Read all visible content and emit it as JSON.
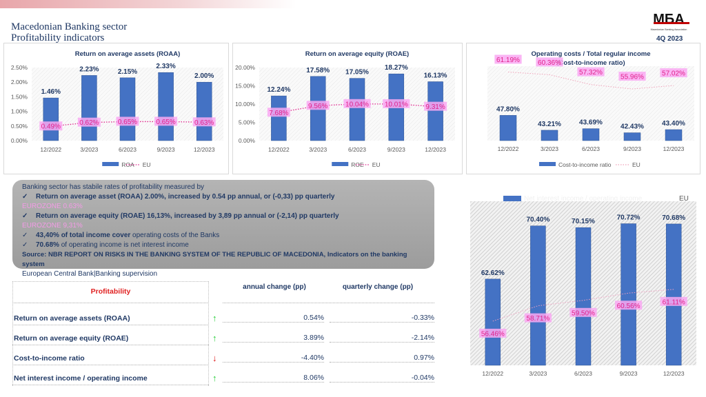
{
  "header": {
    "title_line1": "Macedonian Banking sector",
    "title_line2": "Profitability indicators",
    "logo_text": "MБA",
    "logo_subtitle": "Macedonian Banking Association",
    "period": "4Q 2023"
  },
  "colors": {
    "bar": "#4472c4",
    "eu_line": "#e0218a",
    "eu_label_bg": "#f9a8f2",
    "value_label": "#1f3864",
    "up": "#22cc33",
    "down": "#dd1111"
  },
  "chart_data": [
    {
      "type": "bar",
      "title": "Return on average assets (ROAA)",
      "categories": [
        "12/2022",
        "3/2023",
        "6/2023",
        "9/2023",
        "12/2023"
      ],
      "series": [
        {
          "name": "ROA",
          "type": "bar",
          "values": [
            1.46,
            2.23,
            2.15,
            2.33,
            2.0
          ],
          "labels": [
            "1.46%",
            "2.23%",
            "2.15%",
            "2.33%",
            "2.00%"
          ]
        },
        {
          "name": "EU",
          "type": "line",
          "values": [
            0.49,
            0.62,
            0.65,
            0.65,
            0.63
          ],
          "labels": [
            "0.49%",
            "0.62%",
            "0.65%",
            "0.65%",
            "0.63%"
          ]
        }
      ],
      "yticks": [
        "0.00%",
        "0.50%",
        "1.00%",
        "1.50%",
        "2.00%",
        "2.50%"
      ],
      "ylim": [
        0,
        2.5
      ],
      "legend": "bottom"
    },
    {
      "type": "bar",
      "title": "Return on average equity (ROAE)",
      "categories": [
        "12/2022",
        "3/2023",
        "6/2023",
        "9/2023",
        "12/2023"
      ],
      "series": [
        {
          "name": "ROE",
          "type": "bar",
          "values": [
            12.24,
            17.58,
            17.05,
            18.27,
            16.13
          ],
          "labels": [
            "12.24%",
            "17.58%",
            "17.05%",
            "18.27%",
            "16.13%"
          ]
        },
        {
          "name": "EU",
          "type": "line",
          "values": [
            7.68,
            9.56,
            10.04,
            10.01,
            9.31
          ],
          "labels": [
            "7.68%",
            "9.56%",
            "10.04%",
            "10.01%",
            "9.31%"
          ]
        }
      ],
      "yticks": [
        "0.00%",
        "5.00%",
        "10.00%",
        "15.00%",
        "20.00%"
      ],
      "ylim": [
        0,
        20
      ],
      "legend": "bottom"
    },
    {
      "type": "bar",
      "title": "Operating costs / Total regular income",
      "subtitle": "(Cost-to-income ratio)",
      "categories": [
        "12/2022",
        "3/2023",
        "6/2023",
        "9/2023",
        "12/2023"
      ],
      "series": [
        {
          "name": "Cost-to-income ratio",
          "type": "bar",
          "values": [
            47.8,
            43.21,
            43.69,
            42.43,
            43.4
          ],
          "labels": [
            "47.80%",
            "43.21%",
            "43.69%",
            "42.43%",
            "43.40%"
          ]
        },
        {
          "name": "EU",
          "type": "line",
          "values": [
            61.19,
            60.36,
            57.32,
            55.96,
            57.02
          ],
          "labels": [
            "61.19%",
            "60.36%",
            "57.32%",
            "55.96%",
            "57.02%"
          ]
        }
      ],
      "ylim": [
        40,
        63
      ],
      "legend": "bottom"
    },
    {
      "type": "bar",
      "categories": [
        "12/2022",
        "3/2023",
        "6/2023",
        "9/2023",
        "12/2023"
      ],
      "series": [
        {
          "name": "Net interest income / operating income",
          "type": "bar",
          "values": [
            62.62,
            70.4,
            70.15,
            70.72,
            70.68
          ],
          "labels": [
            "62.62%",
            "70.40%",
            "70.15%",
            "70.72%",
            "70.68%"
          ]
        },
        {
          "name": "EU",
          "type": "line",
          "values": [
            56.46,
            58.71,
            59.5,
            60.56,
            61.11
          ],
          "labels": [
            "56.46%",
            "58.71%",
            "59.50%",
            "60.56%",
            "61.11%"
          ]
        }
      ],
      "ylim": [
        50,
        74
      ],
      "legend": "top"
    }
  ],
  "note": {
    "intro": "Banking sector has stabile rates of profitability measured by",
    "check": "✓",
    "item1": "Return on average asset (ROAA) 2.00%, increased by 0.54 pp annual, or (-0,33) pp quarterly",
    "ez1": "EUROZONE 0.63%",
    "item2": "Return on average equity (ROAE) 16,13%, increased by 3,89 pp annual or (-2,14) pp quarterly",
    "ez2": "EUROZONE 9,31%",
    "item3_bold": "43,40% of total income cover",
    "item3_rest": " operating costs of the Banks",
    "item4_bold": "70.68%",
    "item4_rest": " of operating income is net interest income",
    "source": "Source: NBR REPORT ON RISKS IN THE BANKING SYSTEM OF THE REPUBLIC OF MACEDONIA, Indicators on the banking system",
    "source2": "European Central Bank|Banking supervision"
  },
  "table": {
    "header": "Profitability",
    "col_annual": "annual change (pp)",
    "col_quarterly": "quarterly change (pp)",
    "rows": [
      {
        "label": "Return on average assets (ROAA)",
        "trend": "up",
        "arrow": "↑",
        "annual": "0.54%",
        "quarterly": "-0.33%"
      },
      {
        "label": "Return on average equity (ROAE)",
        "trend": "up",
        "arrow": "↑",
        "annual": "3.89%",
        "quarterly": "-2.14%"
      },
      {
        "label": "Cost-to-income ratio",
        "trend": "down",
        "arrow": "↓",
        "annual": "-4.40%",
        "quarterly": "0.97%"
      },
      {
        "label": "Net interest income / operating income",
        "trend": "up",
        "arrow": "↑",
        "annual": "8.06%",
        "quarterly": "-0.04%"
      }
    ]
  }
}
